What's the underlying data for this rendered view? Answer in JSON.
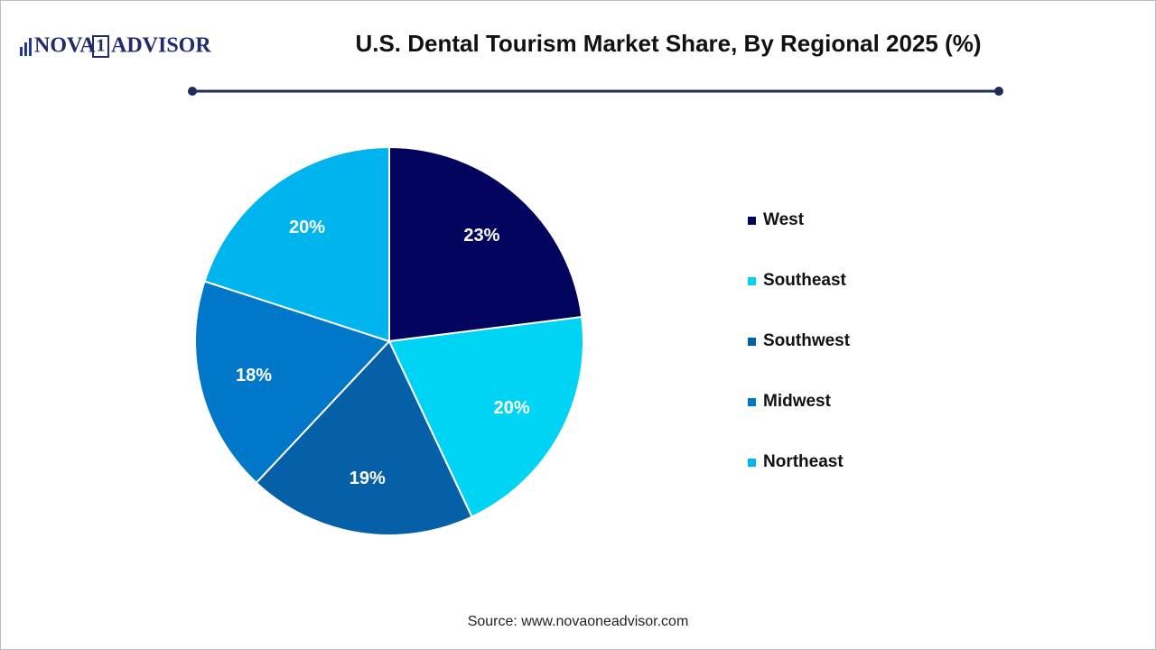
{
  "logo": {
    "left": "NOVA",
    "middle": "1",
    "right": "ADVISOR"
  },
  "chart_data": {
    "type": "pie",
    "title": "U.S. Dental Tourism Market Share, By Regional 2025 (%)",
    "categories": [
      "West",
      "Southeast",
      "Southwest",
      "Midwest",
      "Northeast"
    ],
    "values": [
      23,
      20,
      19,
      18,
      20
    ],
    "value_labels": [
      "23%",
      "20%",
      "19%",
      "18%",
      "20%"
    ],
    "colors": [
      "#03045e",
      "#00d4f5",
      "#0560a8",
      "#0077c8",
      "#00b4ed"
    ],
    "legend": "right",
    "source": "Source: www.novaoneadvisor.com"
  }
}
